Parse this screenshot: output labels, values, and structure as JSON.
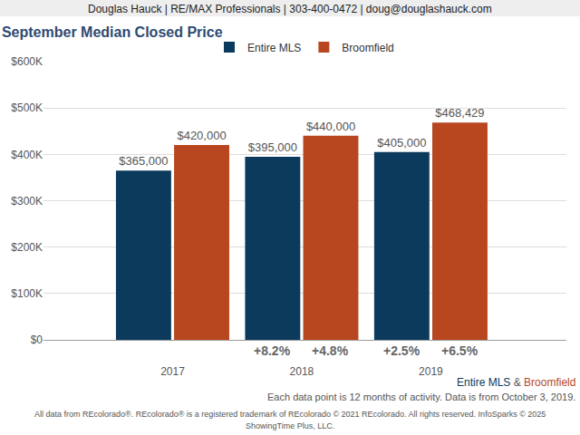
{
  "chart_data": {
    "type": "bar",
    "title": "September Median Closed Price",
    "header": "Douglas Hauck | RE/MAX Professionals | 303-400-0472 | doug@douglashauck.com",
    "categories": [
      "2017",
      "2018",
      "2019"
    ],
    "series": [
      {
        "name": "Entire MLS",
        "color": "#0b3a5d",
        "values": [
          365000,
          395000,
          405000
        ],
        "value_labels": [
          "$365,000",
          "$395,000",
          "$405,000"
        ],
        "change_labels": [
          null,
          "+8.2%",
          "+2.5%"
        ]
      },
      {
        "name": "Broomfield",
        "color": "#b8471f",
        "values": [
          420000,
          440000,
          468429
        ],
        "value_labels": [
          "$420,000",
          "$440,000",
          "$468,429"
        ],
        "change_labels": [
          null,
          "+4.8%",
          "+6.5%"
        ]
      }
    ],
    "ylim": [
      0,
      600000
    ],
    "yticks": [
      {
        "value": 0,
        "label": "$0"
      },
      {
        "value": 100000,
        "label": "$100K"
      },
      {
        "value": 200000,
        "label": "$200K"
      },
      {
        "value": 300000,
        "label": "$300K"
      },
      {
        "value": 400000,
        "label": "$400K"
      },
      {
        "value": 500000,
        "label": "$500K"
      },
      {
        "value": 600000,
        "label": "$600K"
      }
    ],
    "grid": true,
    "legend": "top",
    "data_labels": true,
    "series_note": "Entire MLS & Broomfield",
    "notes": [
      "Each data point is 12 months of activity. Data is from October 3, 2019.",
      "All data from REcolorado®. REcolorado® is a registered trademark of REcolorado © 2021 REcolorado. All rights reserved. InfoSparks © 2025",
      "ShowingTime Plus, LLC."
    ]
  }
}
